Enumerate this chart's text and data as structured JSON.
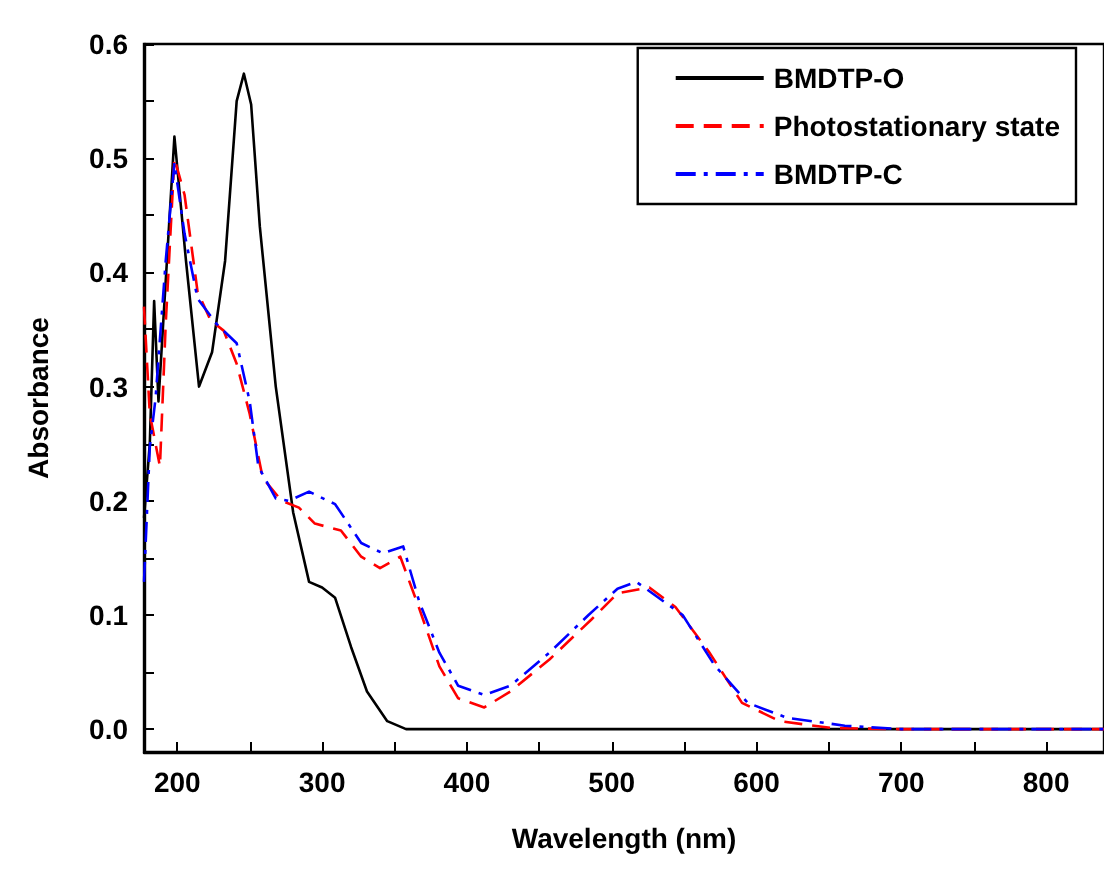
{
  "chart_data": {
    "type": "line",
    "xlabel": "Wavelength (nm)",
    "ylabel": "Absorbance",
    "series": [
      {
        "name": "BMDTP-O",
        "color": "#000000",
        "line_style": "solid",
        "x": [
          177,
          181,
          184,
          187,
          198,
          206,
          215,
          224,
          233,
          241,
          246,
          251,
          257,
          268,
          280,
          291,
          300,
          309,
          320,
          331,
          345,
          358,
          400,
          500,
          600,
          700,
          840
        ],
        "values": [
          0.185,
          0.25,
          0.375,
          0.287,
          0.519,
          0.41,
          0.3,
          0.33,
          0.41,
          0.55,
          0.574,
          0.547,
          0.44,
          0.3,
          0.19,
          0.129,
          0.124,
          0.115,
          0.072,
          0.033,
          0.007,
          0,
          0,
          0,
          0,
          0,
          0
        ]
      },
      {
        "name": "Photostationary state",
        "color": "#ff0000",
        "line_style": "dashed",
        "x": [
          177,
          181,
          188,
          192,
          198,
          205,
          214,
          223,
          232,
          241,
          250,
          259,
          272,
          284,
          295,
          313,
          327,
          340,
          354,
          367,
          381,
          394,
          412,
          430,
          457,
          486,
          504,
          526,
          544,
          567,
          590,
          616,
          652,
          700,
          840
        ],
        "values": [
          0.37,
          0.276,
          0.23,
          0.355,
          0.5,
          0.468,
          0.383,
          0.358,
          0.349,
          0.32,
          0.276,
          0.22,
          0.2,
          0.194,
          0.18,
          0.174,
          0.151,
          0.141,
          0.151,
          0.106,
          0.055,
          0.027,
          0.019,
          0.033,
          0.061,
          0.096,
          0.119,
          0.124,
          0.107,
          0.068,
          0.023,
          0.007,
          0.001,
          0,
          0
        ]
      },
      {
        "name": "BMDTP-C",
        "color": "#0000ff",
        "line_style": "dashdot",
        "x": [
          177,
          181,
          185,
          192,
          198,
          205,
          214,
          227,
          241,
          250,
          256,
          268,
          277,
          291,
          309,
          327,
          342,
          356,
          367,
          381,
          394,
          412,
          430,
          457,
          484,
          504,
          517,
          549,
          571,
          594,
          621,
          661,
          700,
          840
        ],
        "values": [
          0.129,
          0.247,
          0.29,
          0.41,
          0.496,
          0.434,
          0.377,
          0.355,
          0.338,
          0.287,
          0.23,
          0.202,
          0.2,
          0.208,
          0.197,
          0.163,
          0.154,
          0.16,
          0.112,
          0.067,
          0.038,
          0.03,
          0.038,
          0.067,
          0.1,
          0.123,
          0.129,
          0.1,
          0.056,
          0.023,
          0.01,
          0.003,
          0,
          0
        ]
      }
    ],
    "xlim": [
      177,
      840
    ],
    "xticks": [
      200,
      {
        "value": 250,
        "label": null
      },
      300,
      {
        "value": 350,
        "label": null
      },
      400,
      {
        "value": 450,
        "label": null
      },
      500,
      {
        "value": 550,
        "label": null
      },
      600,
      {
        "value": 650,
        "label": null
      },
      700,
      {
        "value": 750,
        "label": null
      },
      800
    ],
    "ylim": [
      -0.02,
      0.6
    ],
    "yticks": [
      {
        "value": 0,
        "label": "0.0"
      },
      {
        "value": 0.05,
        "label": null
      },
      {
        "value": 0.1,
        "label": "0.1"
      },
      {
        "value": 0.15,
        "label": null
      },
      {
        "value": 0.2,
        "label": "0.2"
      },
      {
        "value": 0.25,
        "label": null
      },
      {
        "value": 0.3,
        "label": "0.3"
      },
      {
        "value": 0.35,
        "label": null
      },
      {
        "value": 0.4,
        "label": "0.4"
      },
      {
        "value": 0.45,
        "label": null
      },
      {
        "value": 0.5,
        "label": "0.5"
      },
      {
        "value": 0.55,
        "label": null
      },
      {
        "value": 0.6,
        "label": "0.6"
      }
    ],
    "grid": false,
    "legend": "top right",
    "marker": "none"
  }
}
